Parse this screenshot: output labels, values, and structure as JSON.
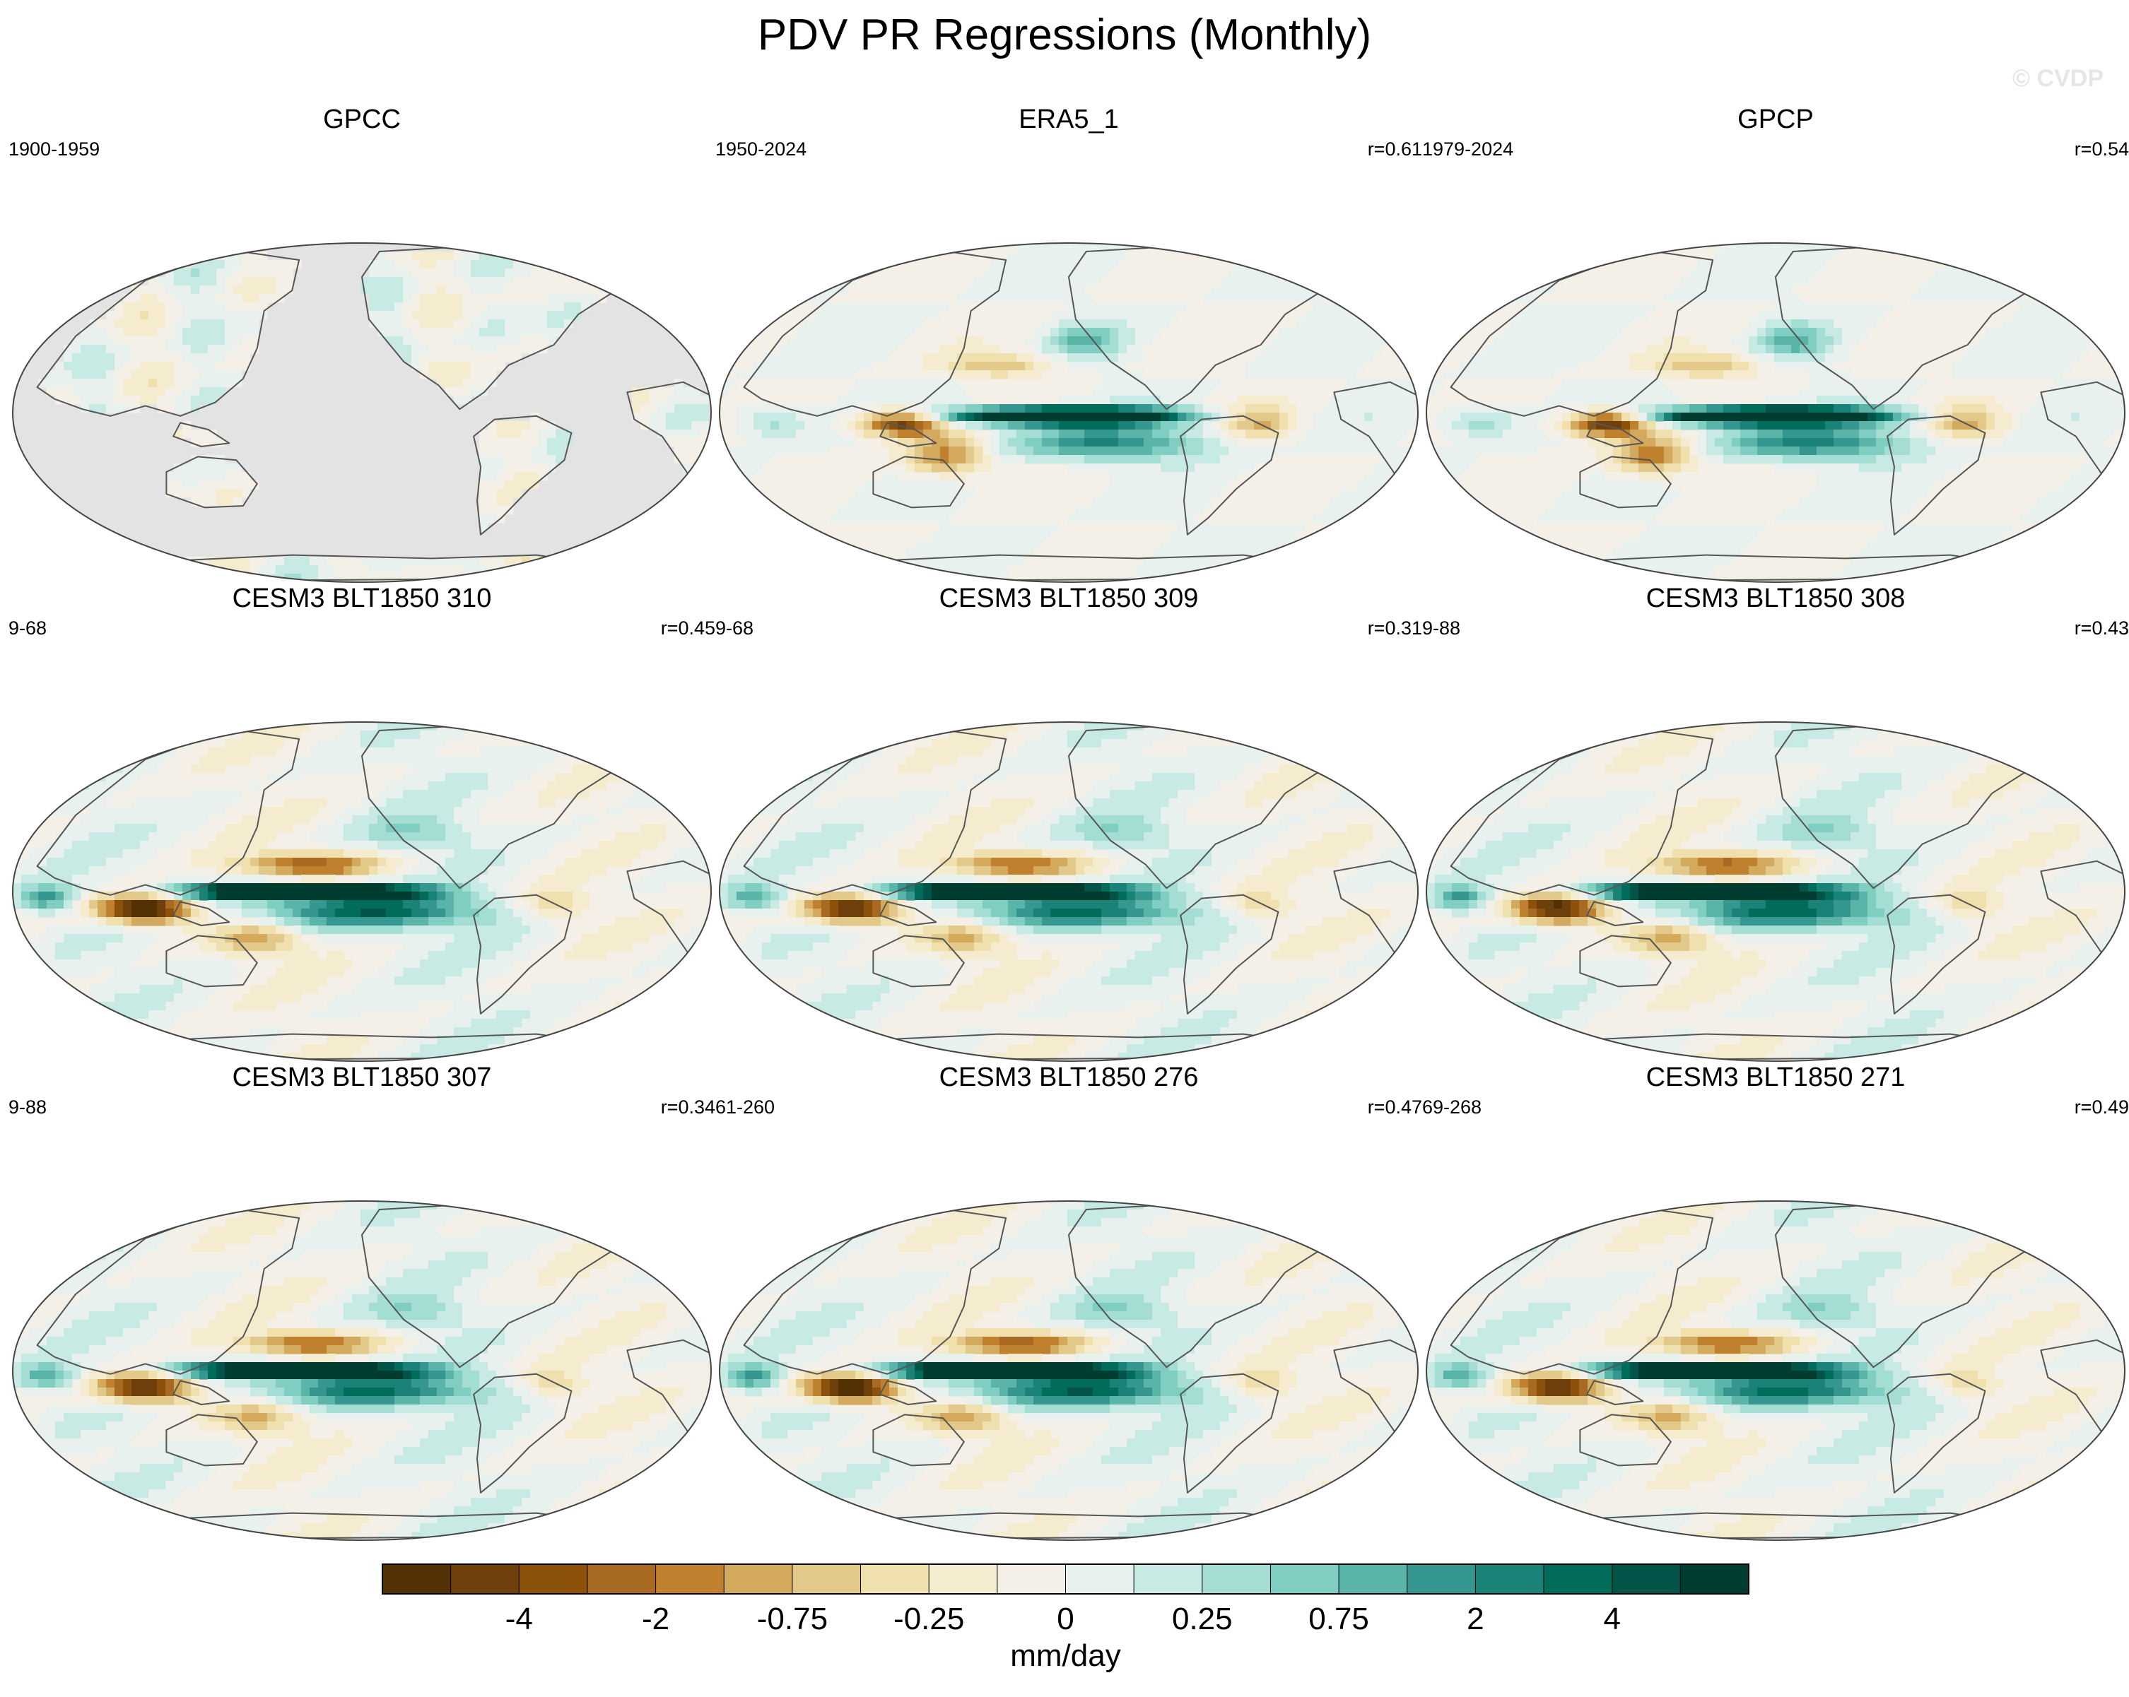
{
  "title": "PDV PR Regressions (Monthly)",
  "watermark": "© CVDP",
  "chart_data": {
    "type": "map-panels",
    "variable": "PR regression on PDV",
    "units": "mm/day",
    "projection": "Robinson, Pacific-centered",
    "panels": [
      {
        "title": "GPCC",
        "period": "1900-1959",
        "r": "",
        "pattern": "land-only",
        "amp": 0.5
      },
      {
        "title": "ERA5_1",
        "period": "1950-2024",
        "r": "r=0.61",
        "pattern": "obs",
        "amp": 1.0
      },
      {
        "title": "GPCP",
        "period": "1979-2024",
        "r": "r=0.54",
        "pattern": "obs",
        "amp": 1.05
      },
      {
        "title": "CESM3 BLT1850 310",
        "period": "9-68",
        "r": "r=0.45",
        "pattern": "model",
        "amp": 1.1
      },
      {
        "title": "CESM3 BLT1850 309",
        "period": "9-68",
        "r": "r=0.31",
        "pattern": "model",
        "amp": 1.0
      },
      {
        "title": "CESM3 BLT1850 308",
        "period": "9-88",
        "r": "r=0.43",
        "pattern": "model",
        "amp": 1.05
      },
      {
        "title": "CESM3 BLT1850 307",
        "period": "9-88",
        "r": "r=0.34",
        "pattern": "model",
        "amp": 1.0
      },
      {
        "title": "CESM3 BLT1850 276",
        "period": "61-260",
        "r": "r=0.47",
        "pattern": "model",
        "amp": 1.1
      },
      {
        "title": "CESM3 BLT1850 271",
        "period": "69-268",
        "r": "r=0.49",
        "pattern": "model",
        "amp": 1.0
      }
    ],
    "colorbar": {
      "label": "mm/day",
      "tick_labels": [
        "-4",
        "-2",
        "-0.75",
        "-0.25",
        "0",
        "0.25",
        "0.75",
        "2",
        "4"
      ],
      "colors": [
        "#543005",
        "#6f3f0c",
        "#8c510a",
        "#a86a23",
        "#bf812d",
        "#d3a95d",
        "#e2c889",
        "#f0e0ae",
        "#f5ebcf",
        "#f4f0e8",
        "#e9f1ee",
        "#c7eae5",
        "#a4ddd3",
        "#80cdc1",
        "#5ab4a8",
        "#35978f",
        "#1b8278",
        "#016c59",
        "#015447",
        "#003c30"
      ]
    },
    "land_color": "#e3e3e3",
    "coast_color": "#555555"
  }
}
